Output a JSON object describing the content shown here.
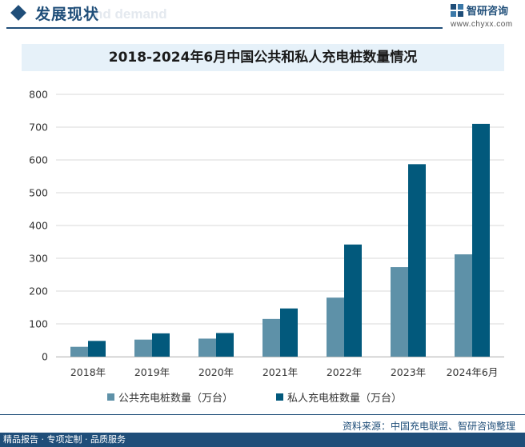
{
  "header": {
    "title": "发展现状",
    "ghost_text": "nd demand",
    "logo_text": "智研咨询",
    "logo_url": "www.chyxx.com"
  },
  "colors": {
    "public": "#5e91a8",
    "private": "#02597c",
    "accent": "#1f4e79"
  },
  "chart_data": {
    "type": "bar",
    "title": "2018-2024年6月中国公共和私人充电桩数量情况",
    "categories": [
      "2018年",
      "2019年",
      "2020年",
      "2021年",
      "2022年",
      "2023年",
      "2024年6月"
    ],
    "series": [
      {
        "name": "公共充电桩数量（万台）",
        "values": [
          30,
          52,
          55,
          115,
          180,
          273,
          312
        ]
      },
      {
        "name": "私人充电桩数量（万台）",
        "values": [
          48,
          71,
          72,
          147,
          342,
          587,
          710
        ]
      }
    ],
    "ylim": [
      0,
      800
    ],
    "yticks": [
      0,
      100,
      200,
      300,
      400,
      500,
      600,
      700,
      800
    ],
    "grid": true,
    "legend_position": "bottom"
  },
  "footer": {
    "source": "资料来源：中国充电联盟、智研咨询整理",
    "tagline": "精品报告 · 专项定制 · 品质服务"
  }
}
